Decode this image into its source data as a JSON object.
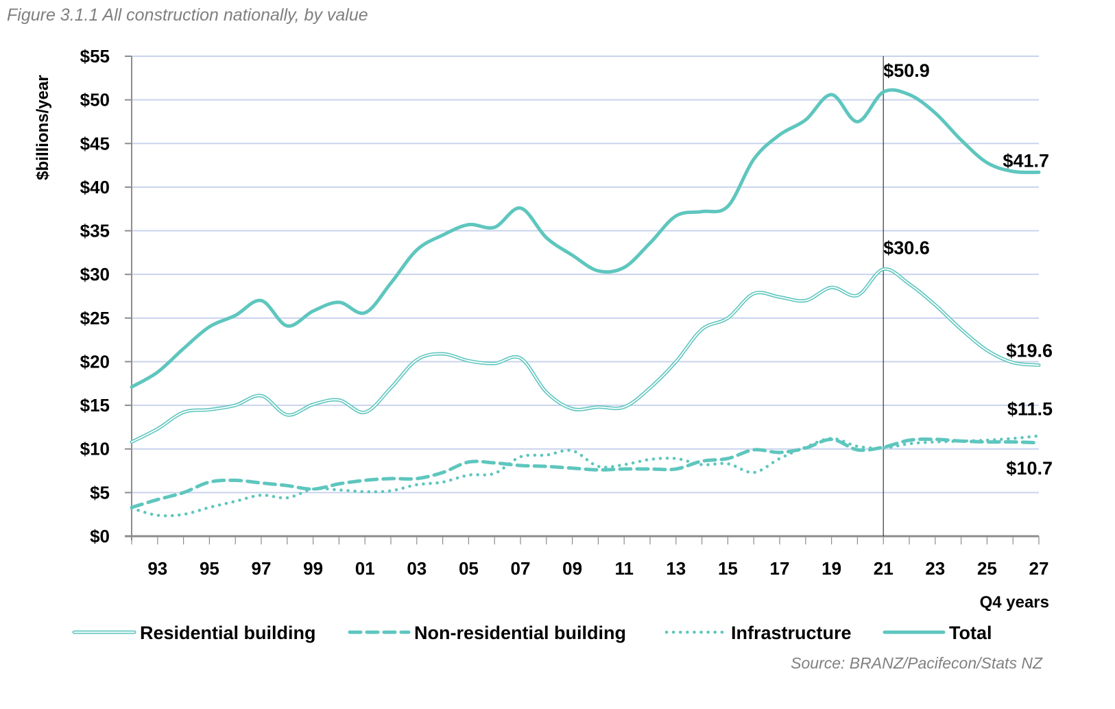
{
  "figure": {
    "title": "Figure 3.1.1 All construction nationally, by value",
    "source": "Source: BRANZ/Pacifecon/Stats NZ"
  },
  "colors": {
    "series": "#5ec6be",
    "gridline": "#c9d3ee",
    "axis": "#8c8c8c",
    "forecast_marker": "#333333"
  },
  "chart_data": {
    "type": "line",
    "title": "All construction nationally, by value",
    "xlabel": "Q4 years",
    "ylabel": "$billions/year",
    "ylim": [
      0,
      55
    ],
    "xlim": [
      1992,
      2027
    ],
    "grid": true,
    "legend_position": "bottom",
    "y_ticks": [
      "$0",
      "$5",
      "$10",
      "$15",
      "$20",
      "$25",
      "$30",
      "$35",
      "$40",
      "$45",
      "$50",
      "$55"
    ],
    "y_tick_values": [
      0,
      5,
      10,
      15,
      20,
      25,
      30,
      35,
      40,
      45,
      50,
      55
    ],
    "x_tick_labels": [
      "93",
      "95",
      "97",
      "99",
      "01",
      "03",
      "05",
      "07",
      "09",
      "11",
      "13",
      "15",
      "17",
      "19",
      "21",
      "23",
      "25",
      "27"
    ],
    "x_tick_values": [
      1993,
      1995,
      1997,
      1999,
      2001,
      2003,
      2005,
      2007,
      2009,
      2011,
      2013,
      2015,
      2017,
      2019,
      2021,
      2023,
      2025,
      2027
    ],
    "forecast_divider_x": 2021,
    "x": [
      1992,
      1993,
      1994,
      1995,
      1996,
      1997,
      1998,
      1999,
      2000,
      2001,
      2002,
      2003,
      2004,
      2005,
      2006,
      2007,
      2008,
      2009,
      2010,
      2011,
      2012,
      2013,
      2014,
      2015,
      2016,
      2017,
      2018,
      2019,
      2020,
      2021,
      2022,
      2023,
      2024,
      2025,
      2026,
      2027
    ],
    "series": [
      {
        "name": "Residential building",
        "style": "double",
        "values": [
          10.8,
          12.3,
          14.2,
          14.5,
          15.0,
          16.1,
          13.9,
          15.1,
          15.6,
          14.2,
          17.0,
          20.2,
          20.9,
          20.1,
          19.8,
          20.4,
          16.5,
          14.6,
          14.8,
          14.8,
          17.0,
          20.0,
          23.7,
          25.0,
          27.8,
          27.4,
          27.0,
          28.5,
          27.6,
          30.6,
          28.9,
          26.5,
          23.7,
          21.3,
          19.9,
          19.6
        ]
      },
      {
        "name": "Non-residential building",
        "style": "dashed",
        "values": [
          3.3,
          4.2,
          5.0,
          6.2,
          6.4,
          6.1,
          5.8,
          5.4,
          6.0,
          6.4,
          6.6,
          6.6,
          7.3,
          8.5,
          8.4,
          8.1,
          8.0,
          7.8,
          7.6,
          7.7,
          7.7,
          7.7,
          8.6,
          8.9,
          9.9,
          9.6,
          10.1,
          11.1,
          9.9,
          10.2,
          11.0,
          11.1,
          10.9,
          10.8,
          10.8,
          10.7
        ]
      },
      {
        "name": "Infrastructure",
        "style": "dotted",
        "values": [
          3.2,
          2.4,
          2.5,
          3.3,
          4.0,
          4.7,
          4.4,
          5.4,
          5.3,
          5.1,
          5.2,
          5.9,
          6.2,
          7.0,
          7.2,
          9.1,
          9.3,
          9.8,
          8.0,
          8.2,
          8.8,
          8.9,
          8.2,
          8.3,
          7.3,
          8.9,
          10.2,
          11.2,
          10.3,
          10.1,
          10.6,
          10.8,
          10.9,
          11.0,
          11.2,
          11.5
        ]
      },
      {
        "name": "Total",
        "style": "solid-thick",
        "values": [
          17.1,
          18.8,
          21.5,
          24.0,
          25.3,
          27.0,
          24.1,
          25.8,
          26.8,
          25.6,
          29.0,
          32.8,
          34.5,
          35.7,
          35.4,
          37.6,
          34.2,
          32.2,
          30.4,
          30.8,
          33.6,
          36.7,
          37.2,
          37.8,
          43.2,
          46.0,
          47.7,
          50.6,
          47.5,
          50.9,
          50.6,
          48.5,
          45.4,
          42.8,
          41.8,
          41.7
        ]
      }
    ],
    "annotations": [
      {
        "text": "$50.9",
        "series": "Total",
        "x": 2021,
        "y": 50.9
      },
      {
        "text": "$41.7",
        "series": "Total",
        "x": 2027,
        "y": 41.7
      },
      {
        "text": "$30.6",
        "series": "Residential building",
        "x": 2021,
        "y": 30.6
      },
      {
        "text": "$19.6",
        "series": "Residential building",
        "x": 2027,
        "y": 19.6
      },
      {
        "text": "$11.5",
        "series": "Infrastructure",
        "x": 2027,
        "y": 11.5
      },
      {
        "text": "$10.7",
        "series": "Non-residential building",
        "x": 2027,
        "y": 10.7
      }
    ],
    "legend": [
      "Residential building",
      "Non-residential building",
      "Infrastructure",
      "Total"
    ]
  }
}
